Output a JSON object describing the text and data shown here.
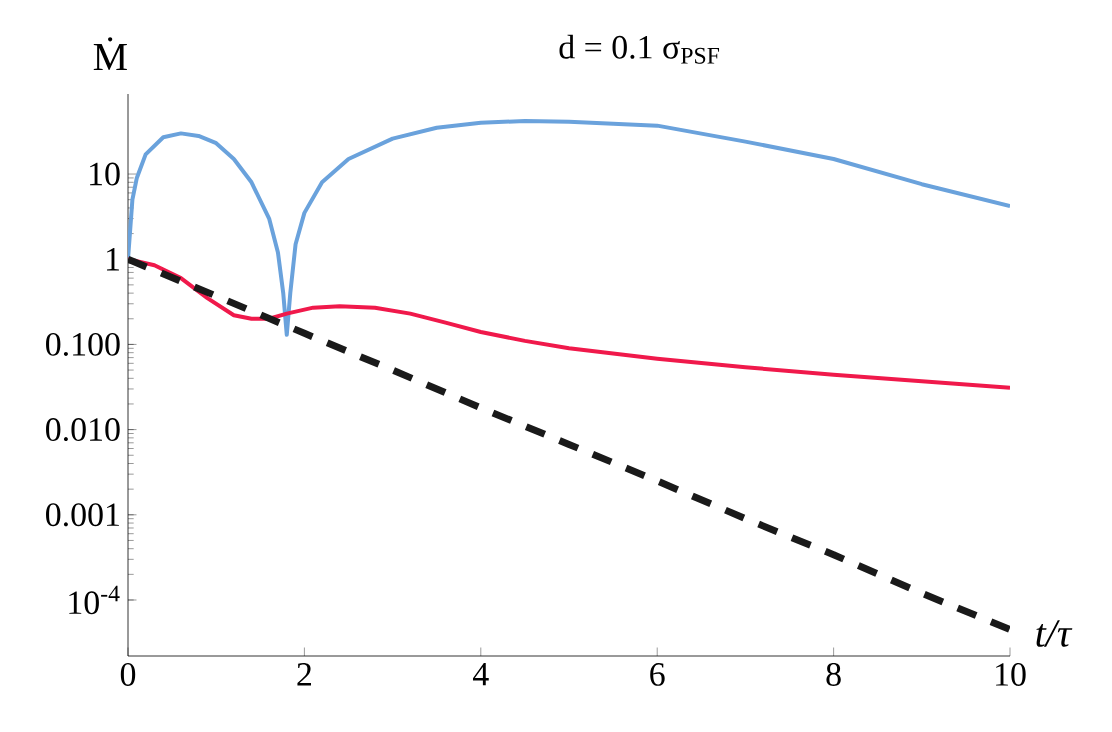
{
  "chart_data": {
    "type": "line",
    "title": "d = 0.1 σ$_{PSF}$",
    "xlabel": "t/τ",
    "ylabel": "Ṁ",
    "log": "y",
    "marker": "none",
    "xlim": [
      0,
      10
    ],
    "ylim": [
      2.2e-05,
      87
    ],
    "xticks": [
      0,
      2,
      4,
      6,
      8,
      10
    ],
    "yticks": [
      {
        "value": 0.0001,
        "label": "10$^{-4}$"
      },
      {
        "value": 0.001,
        "label": "0.001"
      },
      {
        "value": 0.01,
        "label": "0.010"
      },
      {
        "value": 0.1,
        "label": "0.100"
      },
      {
        "value": 1,
        "label": "1"
      },
      {
        "value": 10,
        "label": "10"
      }
    ],
    "series": [
      {
        "color": "#6aa2dc",
        "line_style": "solid",
        "x": [
          0,
          0.05,
          0.1,
          0.2,
          0.4,
          0.6,
          0.8,
          1.0,
          1.2,
          1.4,
          1.6,
          1.7,
          1.76,
          1.8,
          1.84,
          1.9,
          2.0,
          2.2,
          2.5,
          3,
          3.5,
          4,
          4.5,
          5,
          6,
          7,
          8,
          9,
          10
        ],
        "values": [
          1,
          5,
          9,
          17,
          27,
          30,
          28,
          23,
          15,
          8,
          3,
          1.2,
          0.4,
          0.13,
          0.4,
          1.5,
          3.5,
          8,
          15,
          26,
          35,
          40,
          42,
          41,
          37,
          24,
          15,
          7.6,
          4.2
        ]
      },
      {
        "color": "#f0194b",
        "line_style": "solid",
        "x": [
          0,
          0.3,
          0.6,
          0.9,
          1.2,
          1.4,
          1.6,
          1.8,
          2.1,
          2.4,
          2.8,
          3.2,
          3.6,
          4,
          4.5,
          5,
          6,
          7,
          8,
          9,
          10
        ],
        "values": [
          1,
          0.85,
          0.6,
          0.35,
          0.22,
          0.2,
          0.2,
          0.23,
          0.27,
          0.28,
          0.27,
          0.23,
          0.18,
          0.14,
          0.11,
          0.09,
          0.068,
          0.054,
          0.044,
          0.037,
          0.031
        ]
      },
      {
        "color": "#1a1a1a",
        "line_style": "dashed",
        "x": [
          0,
          1,
          2,
          3,
          4,
          5,
          6,
          7,
          8,
          9,
          10
        ],
        "values": [
          1,
          0.37,
          0.135,
          0.05,
          0.018,
          0.0067,
          0.0025,
          0.0009,
          0.00034,
          0.00012,
          4.5e-05
        ]
      }
    ]
  }
}
